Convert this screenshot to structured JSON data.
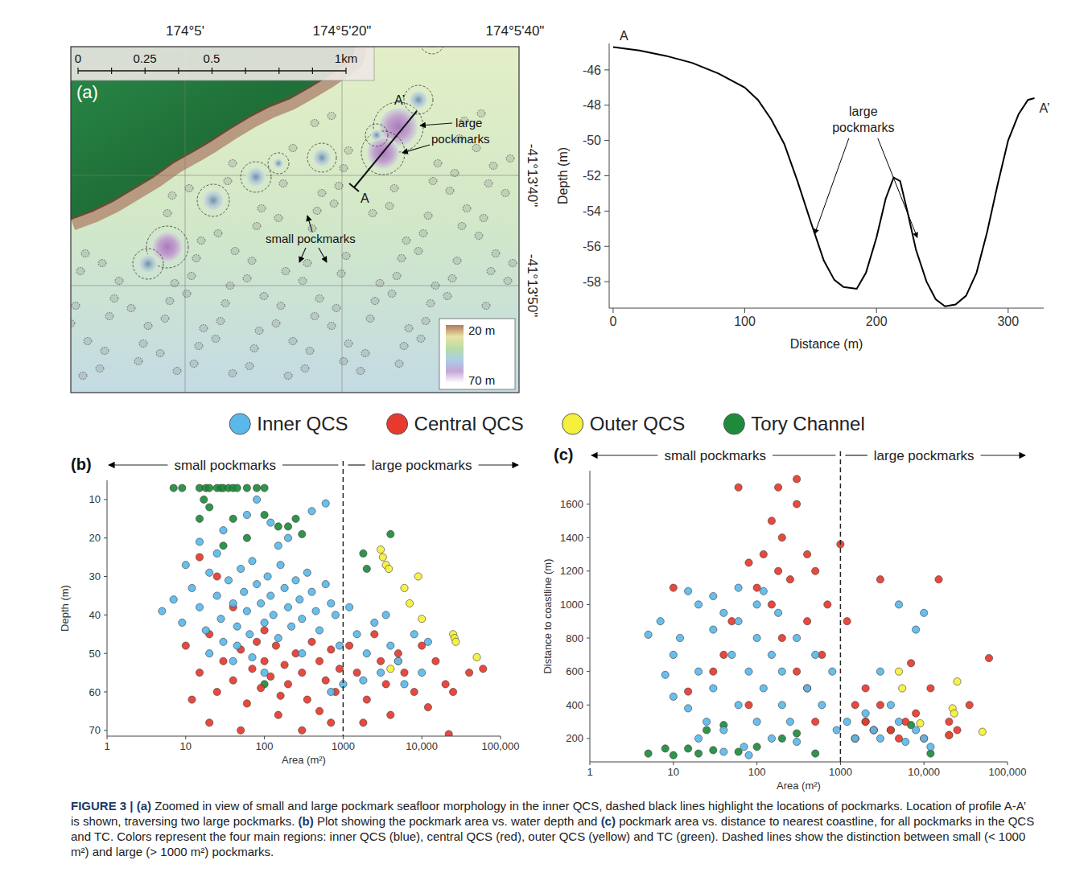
{
  "chart_data": [
    {
      "type": "line",
      "x_label": "Distance (m)",
      "y_label": "Depth (m)",
      "color": "#000000",
      "x": [
        0,
        20,
        40,
        60,
        80,
        100,
        110,
        120,
        130,
        140,
        150,
        160,
        168,
        175,
        185,
        192,
        200,
        207,
        213,
        218,
        224,
        230,
        238,
        245,
        252,
        260,
        268,
        276,
        284,
        292,
        300,
        308,
        315,
        320
      ],
      "values": [
        -44.7,
        -44.9,
        -45.2,
        -45.6,
        -46.2,
        -47.0,
        -47.7,
        -48.8,
        -50.2,
        -52.3,
        -54.6,
        -56.8,
        -57.9,
        -58.3,
        -58.4,
        -57.5,
        -55.5,
        -53.3,
        -52.1,
        -52.3,
        -54.2,
        -56.2,
        -58.0,
        -59.0,
        -59.4,
        -59.3,
        -58.8,
        -57.5,
        -55.2,
        -52.5,
        -50.0,
        -48.5,
        -47.7,
        -47.6
      ],
      "xlim": [
        -3,
        327
      ],
      "ylim": [
        -59.5,
        -44.5
      ],
      "xticks": [
        0,
        100,
        200,
        300
      ],
      "yticks": [
        -46,
        -48,
        -50,
        -52,
        -54,
        -56,
        -58
      ],
      "start_label": "A",
      "end_label": "A’",
      "annotations": [
        {
          "text": "large pockmarks",
          "at": [
            190,
            -48.6
          ],
          "arrows_to": [
            [
              153,
              -55.3
            ],
            [
              231,
              -55.5
            ]
          ]
        }
      ]
    },
    {
      "type": "scatter",
      "panel": "(b)",
      "log": "x",
      "legend": "top",
      "x_label": "Area (m²)",
      "y_label": "Depth (m)",
      "xlim": [
        1,
        100000
      ],
      "ylim": [
        71.5,
        5
      ],
      "xticks": [
        1,
        10,
        100,
        1000,
        {
          "value": 10000,
          "label": "10,000"
        },
        {
          "value": 100000,
          "label": "100,000"
        }
      ],
      "yticks": [
        10,
        20,
        30,
        40,
        50,
        60,
        70
      ],
      "threshold": 1000,
      "regions": [
        "small pockmarks",
        "large pockmarks"
      ],
      "series": [
        {
          "name": "Inner QCS",
          "color": "#5bb8ea",
          "x": [
            5,
            7,
            9,
            12,
            15,
            18,
            20,
            25,
            28,
            30,
            35,
            40,
            45,
            50,
            55,
            60,
            65,
            70,
            80,
            90,
            100,
            110,
            120,
            130,
            150,
            160,
            180,
            200,
            220,
            250,
            280,
            300,
            350,
            400,
            450,
            500,
            600,
            700,
            15,
            30,
            60,
            80,
            120,
            200,
            400,
            600,
            40,
            100,
            300,
            800,
            900,
            1200,
            1500,
            2000,
            2500,
            3000,
            4000,
            5000,
            6000,
            8000,
            10000,
            1800,
            3500,
            12000,
            25,
            45,
            70,
            150,
            10,
            20,
            1000,
            700
          ],
          "values": [
            39,
            36,
            42,
            33,
            38,
            44,
            29,
            35,
            41,
            47,
            31,
            37,
            43,
            28,
            34,
            39,
            45,
            26,
            32,
            37,
            42,
            30,
            35,
            40,
            46,
            27,
            33,
            38,
            43,
            31,
            36,
            41,
            29,
            34,
            39,
            44,
            32,
            37,
            21,
            18,
            14,
            10,
            16,
            20,
            13,
            11,
            52,
            55,
            50,
            40,
            48,
            38,
            45,
            50,
            42,
            55,
            48,
            52,
            58,
            45,
            55,
            57,
            40,
            47,
            24,
            48,
            51,
            22,
            27,
            50,
            58,
            60
          ]
        },
        {
          "name": "Central QCS",
          "color": "#e63a2e",
          "x": [
            10,
            15,
            20,
            25,
            30,
            40,
            50,
            60,
            70,
            80,
            90,
            100,
            120,
            140,
            160,
            180,
            200,
            250,
            300,
            350,
            400,
            500,
            600,
            700,
            800,
            20,
            50,
            150,
            300,
            500,
            25,
            40,
            15,
            100,
            900,
            1200,
            1500,
            2000,
            2500,
            3000,
            3500,
            4000,
            5000,
            6000,
            8000,
            10000,
            12000,
            15000,
            20000,
            25000,
            40000,
            60000,
            22000,
            1800,
            700,
            12
          ],
          "values": [
            48,
            55,
            45,
            60,
            52,
            57,
            49,
            63,
            54,
            47,
            59,
            52,
            56,
            48,
            61,
            53,
            58,
            50,
            55,
            62,
            47,
            52,
            57,
            49,
            60,
            68,
            70,
            66,
            70,
            65,
            30,
            38,
            25,
            44,
            54,
            48,
            55,
            62,
            45,
            52,
            58,
            66,
            50,
            55,
            60,
            48,
            64,
            52,
            58,
            60,
            55,
            54,
            71,
            68,
            68,
            62
          ]
        },
        {
          "name": "Outer QCS",
          "color": "#f5f03c",
          "x": [
            3000,
            3200,
            3500,
            3800,
            6000,
            7000,
            9000,
            5000,
            4000,
            25000,
            26000,
            27000,
            50000,
            10000
          ],
          "values": [
            23,
            25,
            27,
            28,
            33,
            37,
            30,
            52,
            54,
            45,
            46,
            47,
            51,
            41
          ]
        },
        {
          "name": "Tory Channel",
          "color": "#1e8b3c",
          "x": [
            7,
            9,
            15,
            18,
            20,
            25,
            28,
            30,
            35,
            40,
            45,
            60,
            80,
            100,
            17,
            20,
            40,
            60,
            100,
            150,
            200,
            300,
            250,
            2000,
            4000,
            1800,
            100,
            15,
            30
          ],
          "values": [
            7,
            7,
            7,
            7,
            7,
            7,
            7,
            7,
            7,
            7,
            7,
            7,
            7,
            7,
            10,
            12,
            15,
            20,
            14,
            17,
            17,
            19,
            15,
            28,
            19,
            24,
            58,
            15,
            22
          ]
        }
      ]
    },
    {
      "type": "scatter",
      "panel": "(c)",
      "log": "x",
      "x_label": "Area (m²)",
      "y_label": "Distance to coastline (m)",
      "xlim": [
        1,
        100000
      ],
      "ylim": [
        60,
        1800
      ],
      "xticks": [
        1,
        10,
        100,
        1000,
        {
          "value": 10000,
          "label": "10,000"
        },
        {
          "value": 100000,
          "label": "100,000"
        }
      ],
      "yticks": [
        200,
        400,
        600,
        800,
        1000,
        1200,
        1400,
        1600
      ],
      "threshold": 1000,
      "regions": [
        "small pockmarks",
        "large pockmarks"
      ],
      "series": [
        {
          "name": "Inner QCS",
          "color": "#5bb8ea",
          "x": [
            5,
            7,
            8,
            10,
            10,
            12,
            15,
            20,
            20,
            25,
            30,
            30,
            40,
            40,
            50,
            60,
            60,
            70,
            80,
            100,
            100,
            100,
            120,
            150,
            150,
            180,
            200,
            200,
            250,
            300,
            300,
            400,
            500,
            600,
            15,
            30,
            120,
            800,
            900,
            1200,
            1500,
            2000,
            2500,
            3000,
            4000,
            5000,
            6000,
            8000,
            10000,
            12000,
            8000,
            10000,
            5000,
            3000,
            40,
            80,
            20,
            60
          ],
          "values": [
            820,
            900,
            580,
            700,
            450,
            800,
            380,
            1000,
            600,
            300,
            850,
            500,
            950,
            250,
            700,
            400,
            900,
            150,
            600,
            1000,
            300,
            800,
            500,
            200,
            700,
            950,
            400,
            600,
            300,
            800,
            180,
            500,
            700,
            400,
            1080,
            1050,
            1080,
            600,
            250,
            300,
            200,
            350,
            250,
            200,
            400,
            300,
            180,
            250,
            200,
            150,
            850,
            950,
            1000,
            600,
            120,
            100,
            200,
            1100
          ]
        },
        {
          "name": "Central QCS",
          "color": "#e63a2e",
          "x": [
            100,
            120,
            150,
            180,
            200,
            250,
            300,
            180,
            300,
            400,
            500,
            80,
            60,
            150,
            200,
            300,
            400,
            400,
            500,
            600,
            50,
            40,
            30,
            80,
            700,
            10,
            15,
            1000,
            1500,
            1500,
            2000,
            2500,
            3000,
            3000,
            4000,
            5000,
            6000,
            8000,
            10000,
            15000,
            20000,
            25000,
            35000,
            60000,
            20000,
            12000,
            2000,
            1200,
            7000
          ],
          "values": [
            1100,
            1300,
            1500,
            1200,
            1400,
            1150,
            1600,
            1700,
            1750,
            1300,
            1200,
            1250,
            1700,
            1000,
            800,
            600,
            500,
            900,
            300,
            700,
            900,
            700,
            600,
            400,
            1000,
            1100,
            480,
            1360,
            400,
            200,
            300,
            250,
            1150,
            400,
            250,
            200,
            300,
            350,
            200,
            1150,
            300,
            250,
            400,
            680,
            220,
            500,
            500,
            900,
            650
          ]
        },
        {
          "name": "Outer QCS",
          "color": "#f5f03c",
          "x": [
            5000,
            5500,
            25000,
            22000,
            23000,
            50000,
            20000,
            9000,
            2500
          ],
          "values": [
            600,
            500,
            540,
            380,
            350,
            240,
            220,
            290,
            250
          ]
        },
        {
          "name": "Tory Channel",
          "color": "#1e8b3c",
          "x": [
            5,
            8,
            10,
            15,
            20,
            25,
            30,
            40,
            60,
            100,
            200,
            300,
            500,
            1500,
            2000,
            4000,
            7000,
            12000
          ],
          "values": [
            110,
            140,
            100,
            140,
            110,
            250,
            130,
            280,
            120,
            150,
            200,
            230,
            110,
            200,
            300,
            250,
            280,
            110
          ]
        }
      ]
    }
  ],
  "map": {
    "panel": "(a)",
    "lon_labels": [
      "174°5'",
      "174°5'20\"",
      "174°5'40\""
    ],
    "lat_labels": [
      "-41°13'40\"",
      "-41°13'50\""
    ],
    "scale_labels": [
      "0",
      "0.25",
      "0.5",
      "1km"
    ],
    "profile_start": "A",
    "profile_end": "A’",
    "large_label": "large pockmarks",
    "small_label": "small pockmarks",
    "depth_scale": [
      "20 m",
      "70 m"
    ]
  },
  "caption": {
    "label": "FIGURE 3 |",
    "segments": [
      {
        "panel": "(a)",
        "text": " Zoomed in view of small and large pockmark seafloor morphology in the inner QCS, dashed black lines highlight the locations of pockmarks. Location of profile A-A’ is shown, traversing two large pockmarks. "
      },
      {
        "panel": "(b)",
        "text": " Plot showing the pockmark area vs. water depth and "
      },
      {
        "panel": "(c)",
        "text": " pockmark area vs. distance to nearest coastline, for all pockmarks in the QCS and TC. Colors represent the four main regions: inner QCS (blue), central QCS (red), outer QCS (yellow) and TC (green). Dashed lines show the distinction between small (< 1000 m²) and large (> 1000 m²) pockmarks."
      }
    ]
  }
}
